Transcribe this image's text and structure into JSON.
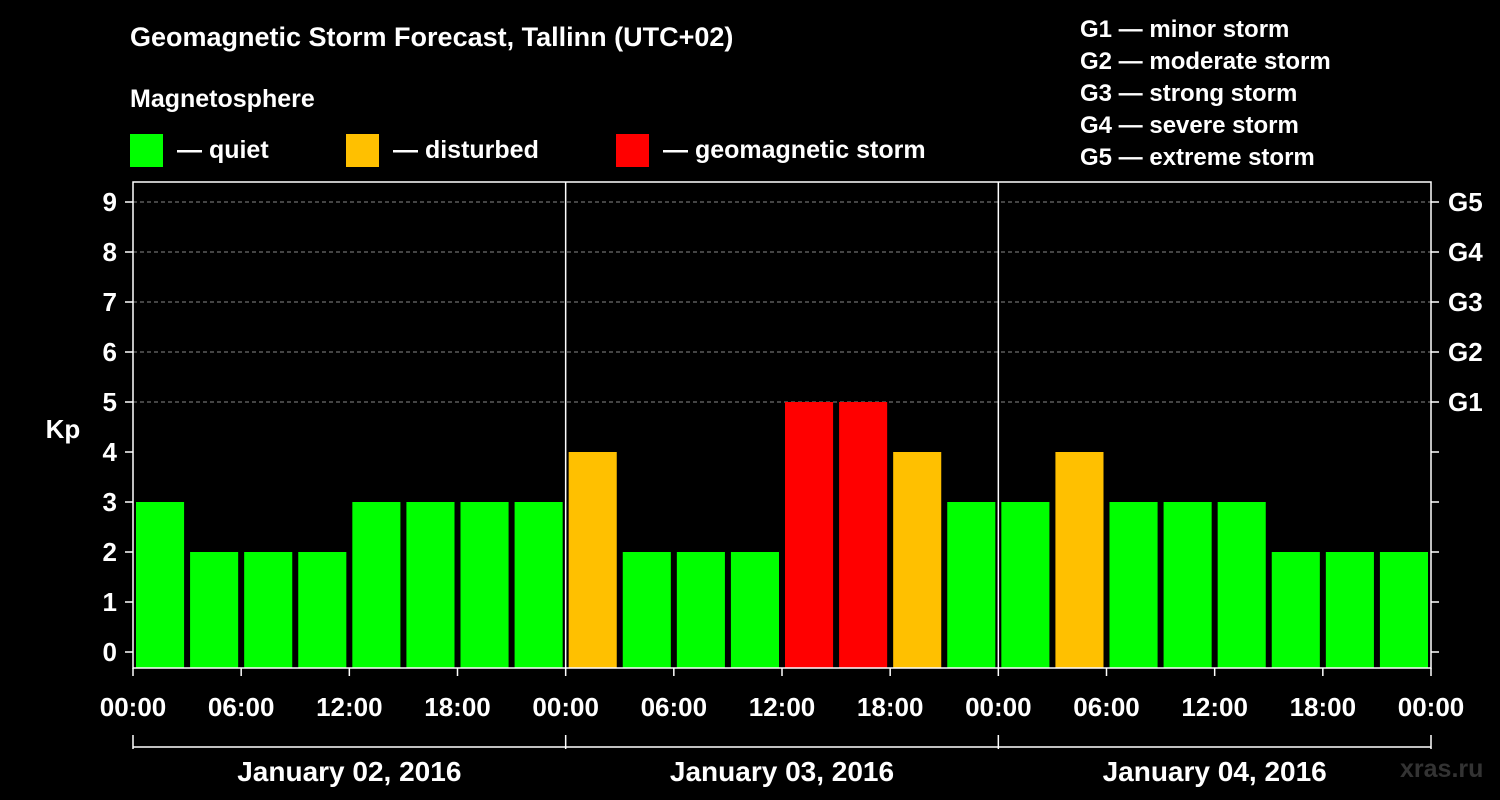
{
  "title": "Geomagnetic Storm Forecast, Tallinn (UTC+02)",
  "subtitle": "Magnetosphere",
  "legend": [
    {
      "label": "— quiet",
      "color": "#00ff00"
    },
    {
      "label": "— disturbed",
      "color": "#ffc000"
    },
    {
      "label": "— geomagnetic storm",
      "color": "#ff0000"
    }
  ],
  "storm_scale": [
    "G1 — minor storm",
    "G2 — moderate storm",
    "G3 — strong storm",
    "G4 — severe storm",
    "G5 — extreme storm"
  ],
  "watermark": "xras.ru",
  "chart_data": {
    "type": "bar",
    "title": "Geomagnetic Storm Forecast, Tallinn (UTC+02)",
    "ylabel": "Kp",
    "ylim": [
      0,
      9
    ],
    "yticks": [
      0,
      1,
      2,
      3,
      4,
      5,
      6,
      7,
      8,
      9
    ],
    "right_axis_labels": [
      {
        "kp": 5,
        "label": "G1"
      },
      {
        "kp": 6,
        "label": "G2"
      },
      {
        "kp": 7,
        "label": "G3"
      },
      {
        "kp": 8,
        "label": "G4"
      },
      {
        "kp": 9,
        "label": "G5"
      }
    ],
    "xticks": [
      "00:00",
      "06:00",
      "12:00",
      "18:00",
      "00:00",
      "06:00",
      "12:00",
      "18:00",
      "00:00",
      "06:00",
      "12:00",
      "18:00",
      "00:00"
    ],
    "days": [
      "January 02, 2016",
      "January 03, 2016",
      "January 04, 2016"
    ],
    "bar_interval_hours": 3,
    "x_start": "2016-01-02 00:00",
    "x_end": "2016-01-05 00:00",
    "bars": [
      {
        "start": "2016-01-02 00:00",
        "kp": 3,
        "status": "quiet"
      },
      {
        "start": "2016-01-02 03:00",
        "kp": 2,
        "status": "quiet"
      },
      {
        "start": "2016-01-02 06:00",
        "kp": 2,
        "status": "quiet"
      },
      {
        "start": "2016-01-02 09:00",
        "kp": 2,
        "status": "quiet"
      },
      {
        "start": "2016-01-02 12:00",
        "kp": 3,
        "status": "quiet"
      },
      {
        "start": "2016-01-02 15:00",
        "kp": 3,
        "status": "quiet"
      },
      {
        "start": "2016-01-02 18:00",
        "kp": 3,
        "status": "quiet"
      },
      {
        "start": "2016-01-02 21:00",
        "kp": 3,
        "status": "quiet"
      },
      {
        "start": "2016-01-03 00:00",
        "kp": 4,
        "status": "disturbed"
      },
      {
        "start": "2016-01-03 03:00",
        "kp": 2,
        "status": "quiet"
      },
      {
        "start": "2016-01-03 06:00",
        "kp": 2,
        "status": "quiet"
      },
      {
        "start": "2016-01-03 09:00",
        "kp": 2,
        "status": "quiet"
      },
      {
        "start": "2016-01-03 12:00",
        "kp": 5,
        "status": "geomagnetic storm"
      },
      {
        "start": "2016-01-03 15:00",
        "kp": 5,
        "status": "geomagnetic storm"
      },
      {
        "start": "2016-01-03 18:00",
        "kp": 4,
        "status": "disturbed"
      },
      {
        "start": "2016-01-03 21:00",
        "kp": 3,
        "status": "quiet"
      },
      {
        "start": "2016-01-04 00:00",
        "kp": 3,
        "status": "quiet"
      },
      {
        "start": "2016-01-04 03:00",
        "kp": 4,
        "status": "disturbed"
      },
      {
        "start": "2016-01-04 06:00",
        "kp": 3,
        "status": "quiet"
      },
      {
        "start": "2016-01-04 09:00",
        "kp": 3,
        "status": "quiet"
      },
      {
        "start": "2016-01-04 12:00",
        "kp": 3,
        "status": "quiet"
      },
      {
        "start": "2016-01-04 15:00",
        "kp": 2,
        "status": "quiet"
      },
      {
        "start": "2016-01-04 18:00",
        "kp": 2,
        "status": "quiet"
      },
      {
        "start": "2016-01-04 21:00",
        "kp": 2,
        "status": "quiet"
      }
    ],
    "colors": {
      "quiet": "#00ff00",
      "disturbed": "#ffc000",
      "geomagnetic storm": "#ff0000"
    },
    "grid": "dashed horizontal at Kp 5-9"
  }
}
